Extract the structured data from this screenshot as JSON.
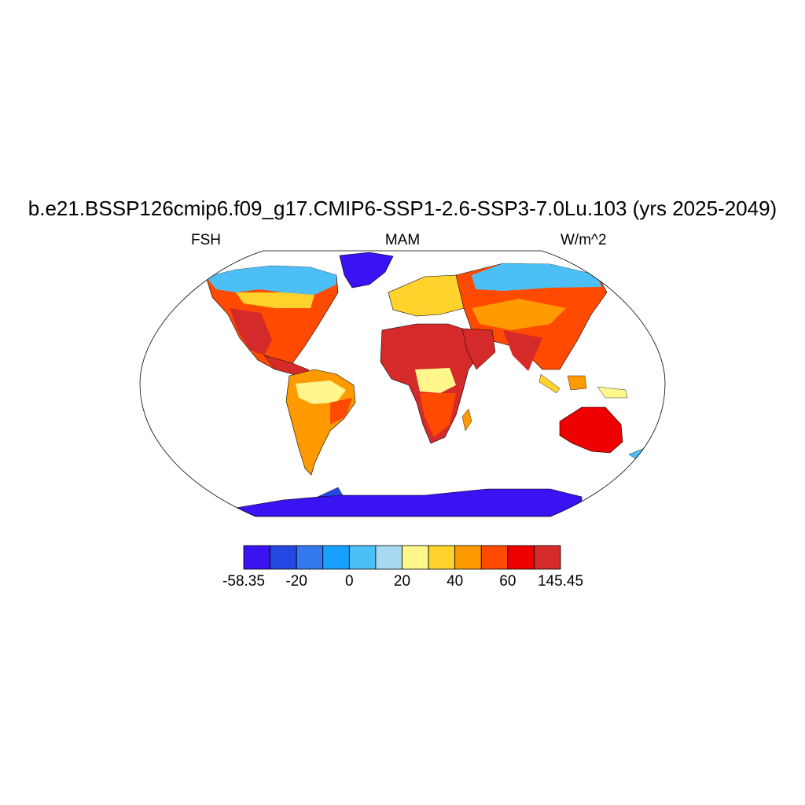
{
  "title": "b.e21.BSSP126cmip6.f09_g17.CMIP6-SSP1-2.6-SSP3-7.0Lu.103 (yrs 2025-2049)",
  "left_label": "FSH",
  "center_label": "MAM",
  "right_label": "W/m^2",
  "map": {
    "projection": "robinson",
    "field": "FSH",
    "season": "MAM",
    "units": "W/m^2",
    "regions": [
      {
        "name": "North America interior",
        "level": "40-60"
      },
      {
        "name": "Southwestern United States and Mexico",
        "level": ">60"
      },
      {
        "name": "Canada and Alaska",
        "level": "0-20"
      },
      {
        "name": "Greenland",
        "level": "<-20"
      },
      {
        "name": "Amazon basin",
        "level": "20-40"
      },
      {
        "name": "Eastern South America",
        "level": "40-60"
      },
      {
        "name": "Sahara and Arabia",
        "level": ">60"
      },
      {
        "name": "Central Africa",
        "level": "20-40"
      },
      {
        "name": "Southern Africa",
        "level": "40-60"
      },
      {
        "name": "Europe",
        "level": "20-40"
      },
      {
        "name": "Siberia",
        "level": "0-20"
      },
      {
        "name": "Central and South Asia",
        "level": ">60"
      },
      {
        "name": "Maritime Southeast Asia",
        "level": "20-40"
      },
      {
        "name": "Australia",
        "level": ">60"
      },
      {
        "name": "Antarctica",
        "level": "<-20"
      }
    ]
  },
  "colorbar": {
    "colors": [
      "#3b12f2",
      "#2448e2",
      "#3479ee",
      "#17a0ff",
      "#4cc0f6",
      "#a6daf0",
      "#fff68c",
      "#ffd22c",
      "#ff9a00",
      "#ff4a00",
      "#ef0000",
      "#d42a2a"
    ],
    "tick_labels": [
      "-58.35",
      "-20",
      "0",
      "20",
      "40",
      "60",
      "145.45"
    ]
  }
}
